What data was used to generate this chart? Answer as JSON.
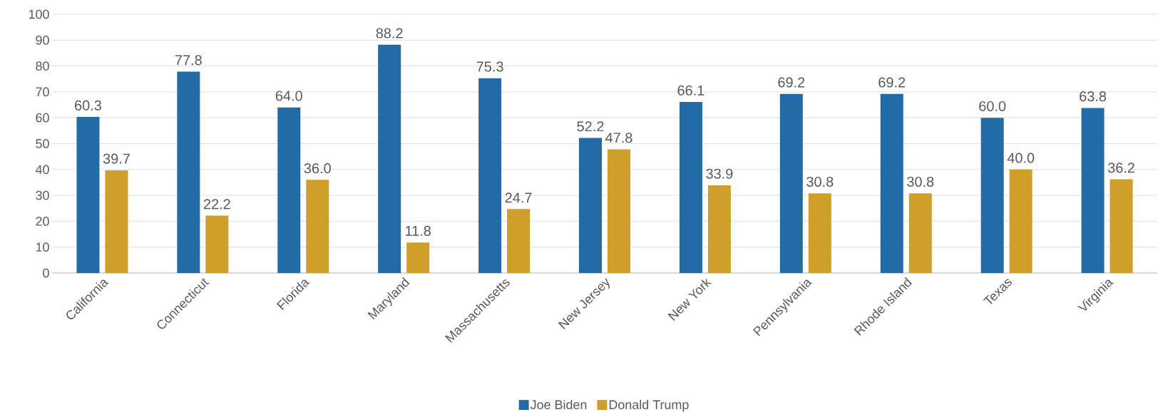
{
  "chart_data": {
    "type": "bar",
    "categories": [
      "California",
      "Connecticut",
      "Florida",
      "Maryland",
      "Massachusetts",
      "New Jersey",
      "New York",
      "Pennsylvania",
      "Rhode Island",
      "Texas",
      "Virginia"
    ],
    "series": [
      {
        "name": "Joe Biden",
        "color": "#236ba6",
        "values": [
          60.3,
          77.8,
          64.0,
          88.2,
          75.3,
          52.2,
          66.1,
          69.2,
          69.2,
          60.0,
          63.8
        ],
        "value_labels": [
          "60.3",
          "77.8",
          "64.0",
          "88.2",
          "75.3",
          "52.2",
          "66.1",
          "69.2",
          "69.2",
          "60.0",
          "63.8"
        ]
      },
      {
        "name": "Donald Trump",
        "color": "#d09e2a",
        "values": [
          39.7,
          22.2,
          36.0,
          11.8,
          24.7,
          47.8,
          33.9,
          30.8,
          30.8,
          40.0,
          36.2
        ],
        "value_labels": [
          "39.7",
          "22.2",
          "36.0",
          "11.8",
          "24.7",
          "47.8",
          "33.9",
          "30.8",
          "30.8",
          "40.0",
          "36.2"
        ]
      }
    ],
    "ylim": [
      0,
      100
    ],
    "yticks": [
      0,
      10,
      20,
      30,
      40,
      50,
      60,
      70,
      80,
      90,
      100
    ],
    "grid": "y",
    "legend": "bottom"
  }
}
